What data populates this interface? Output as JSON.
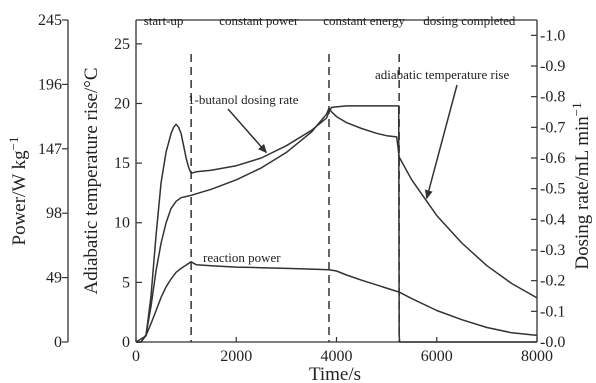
{
  "chart_data": {
    "type": "line",
    "xlabel": "Time/s",
    "x_ticks": [
      "0",
      "2000",
      "4000",
      "6000",
      "8000"
    ],
    "xlim": [
      0,
      8000
    ],
    "axes": {
      "power": {
        "label": "Power/W kg",
        "label_superscript": "−1",
        "ticks": [
          "0",
          "49",
          "98",
          "147",
          "196",
          "245"
        ],
        "range": [
          0,
          245
        ]
      },
      "temperature": {
        "label": "Adiabatic temperature rise/°C",
        "ticks": [
          "0",
          "5",
          "10",
          "15",
          "20",
          "25"
        ],
        "range": [
          0,
          27
        ]
      },
      "dosing": {
        "label": "Dosing rate/mL min",
        "label_superscript": "−1",
        "ticks": [
          "0.0",
          "0.1",
          "0.2",
          "0.3",
          "0.4",
          "0.5",
          "0.6",
          "0.7",
          "0.8",
          "0.9",
          "1.0"
        ],
        "range": [
          0,
          1.05
        ]
      }
    },
    "phase_boundaries": [
      1100,
      3850,
      5250
    ],
    "phase_labels": [
      {
        "text": "start-up",
        "x": 550
      },
      {
        "text": "constant power",
        "x": 2450
      },
      {
        "text": "constant energy",
        "x": 4550
      },
      {
        "text": "dosing completed",
        "x": 6650
      }
    ],
    "series": [
      {
        "name": "1-butanol dosing rate",
        "axis": "dosing",
        "x": [
          0,
          200,
          300,
          400,
          500,
          600,
          700,
          750,
          800,
          850,
          900,
          950,
          1000,
          1050,
          1100,
          1200,
          1500,
          2000,
          2500,
          3000,
          3500,
          3800,
          3850,
          3900,
          4200,
          4500,
          4800,
          5000,
          5100,
          5200,
          5240,
          5250,
          5260,
          8000
        ],
        "y": [
          0,
          0.02,
          0.15,
          0.35,
          0.52,
          0.62,
          0.68,
          0.7,
          0.71,
          0.7,
          0.68,
          0.64,
          0.6,
          0.57,
          0.55,
          0.555,
          0.56,
          0.575,
          0.6,
          0.64,
          0.69,
          0.73,
          0.75,
          0.765,
          0.77,
          0.77,
          0.77,
          0.77,
          0.77,
          0.77,
          0.77,
          0.02,
          0,
          0
        ]
      },
      {
        "name": "adiabatic temperature rise",
        "axis": "temperature",
        "x": [
          0,
          100,
          200,
          300,
          400,
          500,
          600,
          700,
          800,
          900,
          1000,
          1100,
          1500,
          2000,
          2500,
          3000,
          3500,
          3800,
          3850,
          3900,
          4000,
          4200,
          4500,
          4800,
          5000,
          5200,
          5250,
          5500,
          6000,
          6500,
          7000,
          7500,
          8000
        ],
        "y": [
          0,
          0,
          0.6,
          3,
          6,
          8.3,
          10,
          11.2,
          11.8,
          12.1,
          12.2,
          12.3,
          12.8,
          13.6,
          14.6,
          15.9,
          17.6,
          19.1,
          19.6,
          19.3,
          18.9,
          18.4,
          17.9,
          17.5,
          17.3,
          17.2,
          15.5,
          13.6,
          10.6,
          8.3,
          6.4,
          4.9,
          3.7
        ]
      },
      {
        "name": "reaction power",
        "axis": "power",
        "x": [
          0,
          100,
          200,
          300,
          400,
          500,
          600,
          700,
          800,
          900,
          1000,
          1100,
          1200,
          1500,
          2000,
          2500,
          3000,
          3500,
          3850,
          4000,
          4200,
          4500,
          5000,
          5250,
          5500,
          6000,
          6500,
          7000,
          7500,
          8000
        ],
        "y": [
          0,
          0,
          5,
          14,
          24,
          34,
          42,
          48,
          53,
          56,
          58.5,
          61,
          58.8,
          58,
          57,
          56.5,
          56,
          55.5,
          55,
          54,
          51,
          47,
          41,
          38,
          33,
          24,
          17,
          11,
          7,
          5
        ]
      }
    ],
    "annotations": [
      {
        "text": "1-butanol dosing rate",
        "series": "1-butanol dosing rate"
      },
      {
        "text": "adiabatic temperature rise",
        "series": "adiabatic temperature rise"
      },
      {
        "text": "reaction power",
        "series": "reaction power"
      }
    ]
  }
}
